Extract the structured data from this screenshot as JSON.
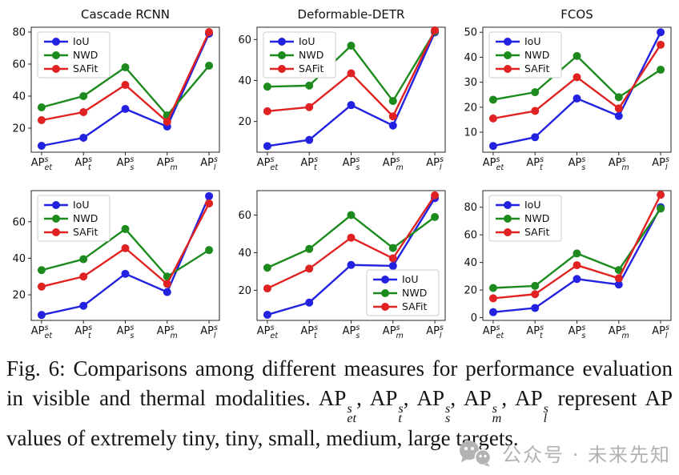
{
  "figure": {
    "caption_segments": [
      {
        "t": "Fig. 6: Comparisons among different measures for performance evaluation in visible and thermal modalities. "
      },
      {
        "t": "AP",
        "sup": "s",
        "sub": "et"
      },
      {
        "t": ", "
      },
      {
        "t": "AP",
        "sup": "s",
        "sub": "t"
      },
      {
        "t": ", "
      },
      {
        "t": "AP",
        "sup": "s",
        "sub": "s"
      },
      {
        "t": ", "
      },
      {
        "t": "AP",
        "sup": "s",
        "sub": "m"
      },
      {
        "t": ", "
      },
      {
        "t": "AP",
        "sup": "s",
        "sub": "l"
      },
      {
        "t": " represent AP values of extremely tiny, tiny, small, medium, large targets."
      }
    ],
    "watermark": {
      "text": "公众号 · 未来先知",
      "icon": "wechat-official-account-icon",
      "color": "#b3b3b3"
    }
  },
  "colors": {
    "IoU": "#2222e0",
    "NWD": "#1c8a1c",
    "SAFit": "#e02222",
    "axis": "#262626"
  },
  "chart_data": [
    {
      "type": "line",
      "title": "Cascade RCNN",
      "row": "top",
      "categories_base": "AP",
      "categories_sup": "s",
      "categories_sub": [
        "et",
        "t",
        "s",
        "m",
        "l"
      ],
      "yticks": [
        20,
        40,
        60,
        80
      ],
      "ylim": [
        5,
        83
      ],
      "legend": {
        "entries": [
          "IoU",
          "NWD",
          "SAFit"
        ],
        "position": "upper-left"
      },
      "series": [
        {
          "name": "IoU",
          "values": [
            9,
            14,
            32,
            21,
            79
          ]
        },
        {
          "name": "NWD",
          "values": [
            33,
            40,
            58,
            28,
            59
          ]
        },
        {
          "name": "SAFit",
          "values": [
            25,
            30,
            47,
            24,
            80
          ]
        }
      ]
    },
    {
      "type": "line",
      "title": "Deformable-DETR",
      "row": "top",
      "categories_base": "AP",
      "categories_sup": "s",
      "categories_sub": [
        "et",
        "t",
        "s",
        "m",
        "l"
      ],
      "yticks": [
        20,
        40,
        60
      ],
      "ylim": [
        5,
        66
      ],
      "legend": {
        "entries": [
          "IoU",
          "NWD",
          "SAFit"
        ],
        "position": "upper-left"
      },
      "series": [
        {
          "name": "IoU",
          "values": [
            8,
            11,
            28,
            18,
            63.5
          ]
        },
        {
          "name": "NWD",
          "values": [
            37,
            37.5,
            57,
            30,
            64
          ]
        },
        {
          "name": "SAFit",
          "values": [
            25,
            27,
            43.5,
            22.5,
            64.5
          ]
        }
      ]
    },
    {
      "type": "line",
      "title": "FCOS",
      "row": "top",
      "categories_base": "AP",
      "categories_sup": "s",
      "categories_sub": [
        "et",
        "t",
        "s",
        "m",
        "l"
      ],
      "yticks": [
        10,
        20,
        30,
        40,
        50
      ],
      "ylim": [
        2,
        52
      ],
      "legend": {
        "entries": [
          "IoU",
          "NWD",
          "SAFit"
        ],
        "position": "upper-left"
      },
      "series": [
        {
          "name": "IoU",
          "values": [
            4.5,
            8,
            23.5,
            16.5,
            50
          ]
        },
        {
          "name": "NWD",
          "values": [
            23,
            26,
            40.5,
            24,
            35
          ]
        },
        {
          "name": "SAFit",
          "values": [
            15.5,
            18.5,
            32,
            19.5,
            45
          ]
        }
      ]
    },
    {
      "type": "line",
      "title": "",
      "row": "bottom",
      "categories_base": "AP",
      "categories_sup": "s",
      "categories_sub": [
        "et",
        "t",
        "s",
        "m",
        "l"
      ],
      "yticks": [
        20,
        40,
        60
      ],
      "ylim": [
        6,
        77
      ],
      "legend": {
        "entries": [
          "IoU",
          "NWD",
          "SAFit"
        ],
        "position": "upper-left"
      },
      "series": [
        {
          "name": "IoU",
          "values": [
            9,
            14,
            31.5,
            21.5,
            74
          ]
        },
        {
          "name": "NWD",
          "values": [
            33.5,
            39.5,
            56,
            30,
            44.5
          ]
        },
        {
          "name": "SAFit",
          "values": [
            24.5,
            30,
            45.5,
            26,
            70
          ]
        }
      ]
    },
    {
      "type": "line",
      "title": "",
      "row": "bottom",
      "categories_base": "AP",
      "categories_sup": "s",
      "categories_sub": [
        "et",
        "t",
        "s",
        "m",
        "l"
      ],
      "yticks": [
        20,
        40,
        60
      ],
      "ylim": [
        4,
        73
      ],
      "legend": {
        "entries": [
          "IoU",
          "NWD",
          "SAFit"
        ],
        "position": "lower-right"
      },
      "series": [
        {
          "name": "IoU",
          "values": [
            7,
            13.5,
            33.5,
            33,
            69
          ]
        },
        {
          "name": "NWD",
          "values": [
            32,
            42,
            60,
            42.5,
            59
          ]
        },
        {
          "name": "SAFit",
          "values": [
            21,
            31.5,
            48,
            37,
            70.5
          ]
        }
      ]
    },
    {
      "type": "line",
      "title": "",
      "row": "bottom",
      "categories_base": "AP",
      "categories_sup": "s",
      "categories_sub": [
        "et",
        "t",
        "s",
        "m",
        "l"
      ],
      "yticks": [
        0,
        20,
        40,
        60,
        80
      ],
      "ylim": [
        -2,
        92
      ],
      "legend": {
        "entries": [
          "IoU",
          "NWD",
          "SAFit"
        ],
        "position": "upper-left"
      },
      "series": [
        {
          "name": "IoU",
          "values": [
            4,
            7,
            28,
            24,
            80
          ]
        },
        {
          "name": "NWD",
          "values": [
            21.5,
            23,
            46.5,
            34.5,
            79
          ]
        },
        {
          "name": "SAFit",
          "values": [
            14,
            17,
            38,
            28.5,
            89
          ]
        }
      ]
    }
  ]
}
